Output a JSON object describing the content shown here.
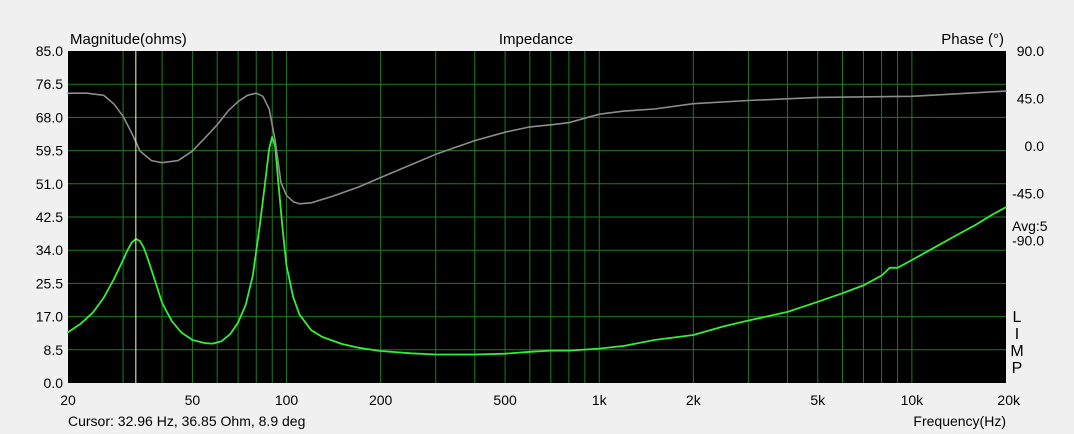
{
  "chart_data": {
    "type": "line",
    "title": "Impedance",
    "ylabel_left": "Magnitude(ohms)",
    "ylabel_right": "Phase (°)",
    "xlabel": "Frequency(Hz)",
    "x_scale": "log",
    "xlim": [
      20,
      20000
    ],
    "ylim_left": [
      0,
      85
    ],
    "ylim_right": [
      -225,
      90
    ],
    "x_ticks": [
      20,
      50,
      100,
      200,
      500,
      1000,
      2000,
      5000,
      10000,
      20000
    ],
    "x_tick_labels": [
      "20",
      "50",
      "100",
      "200",
      "500",
      "1k",
      "2k",
      "5k",
      "10k",
      "20k"
    ],
    "y_left_ticks": [
      85.0,
      76.5,
      68.0,
      59.5,
      51.0,
      42.5,
      34.0,
      25.5,
      17.0,
      8.5,
      0.0
    ],
    "y_left_tick_labels": [
      "85.0",
      "76.5",
      "68.0",
      "59.5",
      "51.0",
      "42.5",
      "34.0",
      "25.5",
      "17.0",
      "8.5",
      "0.0"
    ],
    "y_right_tick_labels": [
      "90.0",
      "45.0",
      "0.0",
      "-45.0",
      "-90.0"
    ],
    "y_right_ticks": [
      90,
      45,
      0,
      -45,
      -90
    ],
    "averaging_label": "Avg:5",
    "side_label_letters": [
      "L",
      "I",
      "M",
      "P"
    ],
    "cursor_readout": "Cursor: 32.96 Hz, 36.85 Ohm, 8.9 deg",
    "cursor_frequency": 32.96,
    "grid": true,
    "colors": {
      "plot_background": "#000000",
      "grid": "#1f7a1f",
      "magnitude": "#33ee33",
      "phase": "#8c8c8c",
      "cursor": "#ffffb0",
      "page_background": "#f0f0f0"
    },
    "series": [
      {
        "name": "Magnitude",
        "axis": "left",
        "x": [
          20,
          22,
          24,
          26,
          28,
          30,
          31,
          32,
          33,
          34,
          35,
          36,
          38,
          40,
          43,
          46,
          50,
          55,
          58,
          62,
          66,
          70,
          74,
          78,
          82,
          85,
          88,
          90,
          92,
          94,
          97,
          100,
          105,
          110,
          120,
          130,
          150,
          170,
          200,
          250,
          300,
          400,
          500,
          600,
          700,
          800,
          1000,
          1200,
          1500,
          2000,
          2500,
          3000,
          4000,
          5000,
          6000,
          7000,
          8000,
          8500,
          9000,
          10000,
          12000,
          14000,
          16000,
          18000,
          20000
        ],
        "y": [
          13.0,
          15.2,
          18.0,
          21.8,
          26.5,
          31.5,
          34.0,
          36.0,
          36.9,
          36.3,
          34.5,
          31.8,
          26.0,
          20.5,
          15.8,
          13.0,
          11.0,
          10.2,
          10.1,
          10.7,
          12.5,
          15.5,
          20.0,
          27.5,
          40.0,
          50.0,
          60.0,
          63.0,
          60.5,
          52.0,
          40.0,
          30.0,
          22.0,
          17.5,
          13.5,
          11.8,
          10.0,
          9.0,
          8.2,
          7.6,
          7.3,
          7.3,
          7.5,
          8.0,
          8.3,
          8.3,
          8.8,
          9.5,
          11.0,
          12.3,
          14.5,
          16.0,
          18.2,
          20.8,
          23.0,
          25.0,
          27.5,
          29.5,
          29.5,
          31.5,
          35.0,
          38.0,
          40.5,
          43.0,
          45.0
        ]
      },
      {
        "name": "Phase",
        "axis": "right",
        "x": [
          20,
          23,
          26,
          28,
          30,
          32,
          34,
          37,
          40,
          45,
          50,
          55,
          60,
          65,
          70,
          75,
          80,
          84,
          88,
          92,
          96,
          100,
          105,
          110,
          120,
          140,
          170,
          200,
          250,
          300,
          400,
          500,
          600,
          700,
          800,
          1000,
          1200,
          1500,
          2000,
          3000,
          5000,
          10000,
          20000
        ],
        "y": [
          50,
          50,
          48,
          40,
          28,
          12,
          -5,
          -14,
          -16,
          -14,
          -5,
          8,
          20,
          33,
          42,
          48,
          50,
          47,
          35,
          5,
          -35,
          -47,
          -53,
          -55,
          -54,
          -48,
          -39,
          -30,
          -18,
          -8,
          5,
          13,
          18,
          20,
          22,
          30,
          33,
          35,
          40,
          43,
          46,
          47,
          52
        ]
      }
    ]
  }
}
